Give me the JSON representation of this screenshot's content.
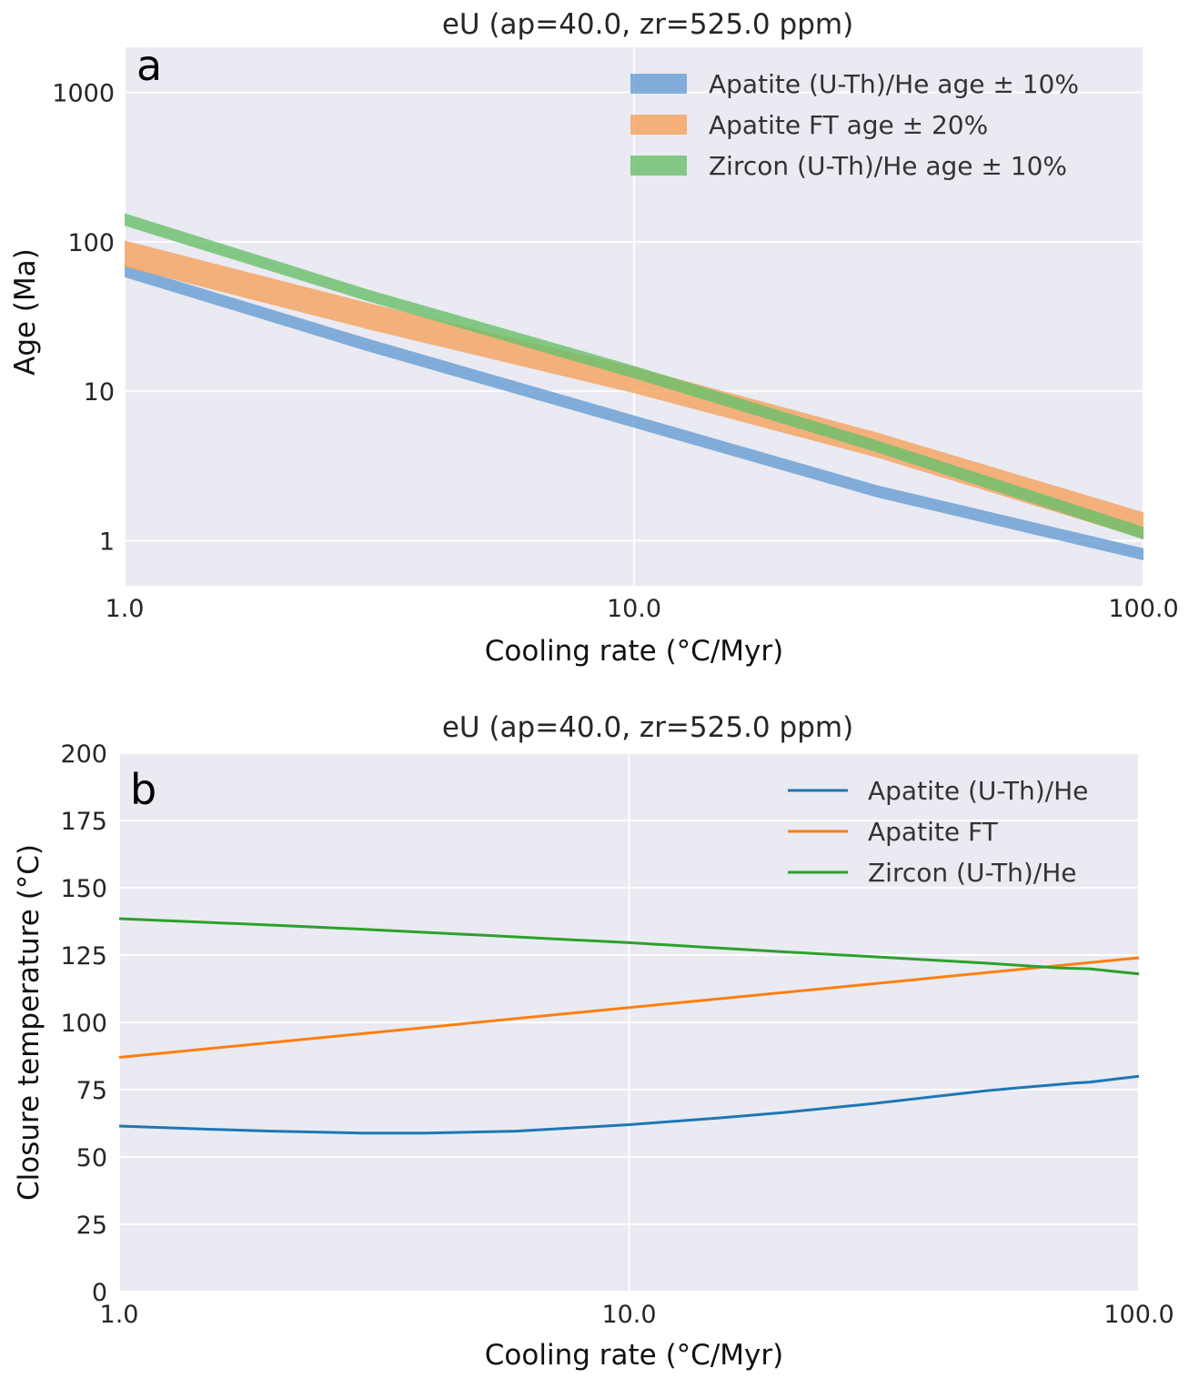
{
  "chart_data": [
    {
      "type": "area",
      "panel_letter": "a",
      "title": "eU (ap=40.0, zr=525.0 ppm)",
      "xlabel": "Cooling rate (°C/Myr)",
      "ylabel": "Age (Ma)",
      "xscale": "log",
      "yscale": "log",
      "xlim": [
        1.0,
        100.0
      ],
      "ylim": [
        0.5,
        2000
      ],
      "xticks": [
        1,
        10,
        100
      ],
      "xtick_labels": [
        "1.0",
        "10.0",
        "100.0"
      ],
      "yticks": [
        1,
        10,
        100,
        1000
      ],
      "ytick_labels": [
        "1",
        "10",
        "100",
        "1000"
      ],
      "grid": true,
      "legend_position": "top-right",
      "series": [
        {
          "name": "Apatite (U-Th)/He age ± 10%",
          "color": "#6a9fd4",
          "x": [
            1,
            3,
            10,
            30,
            100
          ],
          "y_low": [
            58,
            18.5,
            5.7,
            1.95,
            0.74
          ],
          "y_high": [
            70,
            22.5,
            6.9,
            2.35,
            0.89
          ]
        },
        {
          "name": "Apatite FT age ± 20%",
          "color": "#f5a460",
          "x": [
            1,
            3,
            10,
            30,
            100
          ],
          "y_low": [
            68,
            26,
            9.7,
            3.6,
            1.03
          ],
          "y_high": [
            102,
            39,
            14.5,
            5.3,
            1.55
          ]
        },
        {
          "name": "Zircon (U-Th)/He age ± 10%",
          "color": "#6cbf6c",
          "x": [
            1,
            3,
            10,
            30,
            100
          ],
          "y_low": [
            128,
            40,
            12.2,
            3.9,
            1.02
          ],
          "y_high": [
            155,
            48,
            14.8,
            4.7,
            1.24
          ]
        }
      ]
    },
    {
      "type": "line",
      "panel_letter": "b",
      "title": "eU (ap=40.0, zr=525.0 ppm)",
      "xlabel": "Cooling rate (°C/Myr)",
      "ylabel": "Closure temperature (°C)",
      "xscale": "log",
      "xlim": [
        1.0,
        100.0
      ],
      "ylim": [
        0,
        200
      ],
      "xticks": [
        1,
        10,
        100
      ],
      "xtick_labels": [
        "1.0",
        "10.0",
        "100.0"
      ],
      "yticks": [
        0,
        25,
        50,
        75,
        100,
        125,
        150,
        175,
        200
      ],
      "ytick_labels": [
        "0",
        "25",
        "50",
        "75",
        "100",
        "125",
        "150",
        "175",
        "200"
      ],
      "grid": true,
      "legend_position": "top-right",
      "series": [
        {
          "name": "Apatite (U-Th)/He",
          "color": "#1f77b4",
          "x": [
            1,
            1.5,
            2,
            3,
            4,
            6,
            10,
            15,
            20,
            30,
            40,
            50,
            60,
            75,
            80,
            90,
            100
          ],
          "y": [
            61.5,
            60.3,
            59.6,
            58.9,
            58.9,
            59.6,
            62.0,
            64.5,
            66.5,
            69.8,
            72.5,
            74.6,
            75.9,
            77.5,
            77.8,
            79.0,
            80.0
          ]
        },
        {
          "name": "Apatite FT",
          "color": "#ff7f0e",
          "x": [
            1,
            100
          ],
          "y": [
            87,
            124
          ]
        },
        {
          "name": "Zircon (U-Th)/He",
          "color": "#2ca02c",
          "x": [
            1,
            2,
            3,
            5,
            10,
            20,
            30,
            50,
            60,
            70,
            80,
            90,
            100
          ],
          "y": [
            138.5,
            136.1,
            134.6,
            132.5,
            129.6,
            126.2,
            124.4,
            122.0,
            121.0,
            120.2,
            119.9,
            118.9,
            118.0
          ]
        }
      ]
    }
  ]
}
